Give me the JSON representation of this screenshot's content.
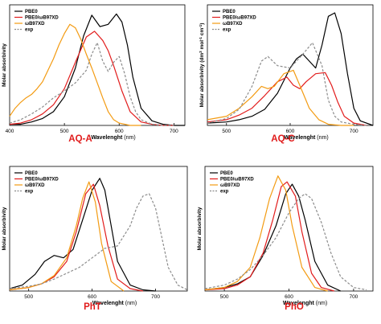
{
  "figure": {
    "panel_count": 4
  },
  "colors": {
    "PBE0": "#000000",
    "PBE0/wB97XD": "#e21c1c",
    "wB97XD": "#f39b12",
    "exp": "#8c8c8c",
    "panel_label": "#e01b1b"
  },
  "chart_data": [
    {
      "id": "AQ-A",
      "type": "line",
      "label": "AQ-A",
      "xlabel": "Wavelenght",
      "xunit": " (nm)",
      "ylabel": "Molar absorbivity",
      "ylabel_sup": "",
      "xlim": [
        400,
        720
      ],
      "ylim": [
        0,
        1.05
      ],
      "xticks": [
        400,
        500,
        600,
        700
      ],
      "grid": false,
      "legend": "top-left",
      "series": [
        {
          "name": "PBE0",
          "key": "PBE0",
          "dash": false,
          "x": [
            400,
            420,
            440,
            460,
            480,
            500,
            520,
            535,
            550,
            565,
            580,
            595,
            605,
            615,
            625,
            640,
            660,
            680,
            700,
            720
          ],
          "y": [
            0.01,
            0.01,
            0.03,
            0.06,
            0.12,
            0.25,
            0.5,
            0.78,
            0.96,
            0.86,
            0.88,
            0.97,
            0.9,
            0.7,
            0.42,
            0.15,
            0.04,
            0.01,
            0,
            0
          ]
        },
        {
          "name": "PBE0/ωB97XD",
          "key": "PBE0/wB97XD",
          "dash": false,
          "x": [
            400,
            420,
            440,
            460,
            480,
            500,
            520,
            540,
            555,
            570,
            580,
            590,
            605,
            620,
            640,
            660,
            680,
            700
          ],
          "y": [
            0.01,
            0.02,
            0.05,
            0.1,
            0.18,
            0.32,
            0.55,
            0.77,
            0.82,
            0.74,
            0.65,
            0.52,
            0.3,
            0.12,
            0.03,
            0.01,
            0,
            0
          ]
        },
        {
          "name": "ωB97XD",
          "key": "wB97XD",
          "dash": false,
          "x": [
            400,
            410,
            420,
            430,
            440,
            450,
            460,
            470,
            480,
            490,
            500,
            510,
            520,
            530,
            540,
            550,
            560,
            570,
            580,
            590,
            600,
            620,
            640
          ],
          "y": [
            0.08,
            0.15,
            0.2,
            0.24,
            0.27,
            0.32,
            0.38,
            0.48,
            0.58,
            0.7,
            0.8,
            0.88,
            0.85,
            0.75,
            0.62,
            0.5,
            0.37,
            0.24,
            0.12,
            0.05,
            0.02,
            0,
            0
          ]
        },
        {
          "name": "exp",
          "key": "exp",
          "dash": true,
          "x": [
            400,
            420,
            440,
            460,
            480,
            500,
            520,
            540,
            550,
            560,
            570,
            580,
            590,
            600,
            610,
            620,
            630,
            640,
            660,
            680,
            700
          ],
          "y": [
            0.02,
            0.05,
            0.1,
            0.16,
            0.24,
            0.3,
            0.37,
            0.48,
            0.62,
            0.72,
            0.56,
            0.47,
            0.55,
            0.6,
            0.45,
            0.25,
            0.12,
            0.05,
            0.01,
            0,
            0
          ]
        }
      ]
    },
    {
      "id": "AQ-C",
      "type": "line",
      "label": "AQ-C",
      "xlabel": "Wavelenght",
      "xunit": " (nm)",
      "ylabel": "Molar absorbivity (dm",
      "ylabel_sup": "3",
      "ylabel_tail": " mol",
      "ylabel_sup2": "-1",
      "ylabel_tail2": " cm",
      "ylabel_sup3": "-1",
      "ylabel_tail3": ")",
      "xlim": [
        470,
        730
      ],
      "ylim": [
        0,
        1.05
      ],
      "xticks": [
        500,
        600,
        700
      ],
      "grid": false,
      "legend": "top-left",
      "series": [
        {
          "name": "PBE0",
          "key": "PBE0",
          "dash": false,
          "x": [
            470,
            500,
            520,
            540,
            560,
            580,
            600,
            610,
            620,
            630,
            640,
            650,
            660,
            670,
            680,
            690,
            700,
            710,
            730
          ],
          "y": [
            0.02,
            0.03,
            0.05,
            0.08,
            0.14,
            0.28,
            0.5,
            0.58,
            0.62,
            0.56,
            0.5,
            0.7,
            0.95,
            0.98,
            0.8,
            0.45,
            0.15,
            0.04,
            0
          ]
        },
        {
          "name": "PBE0/ωB97XD",
          "key": "PBE0/wB97XD",
          "dash": false,
          "x": [
            470,
            500,
            520,
            540,
            560,
            580,
            595,
            605,
            615,
            625,
            640,
            655,
            665,
            675,
            685,
            700,
            720
          ],
          "y": [
            0.03,
            0.05,
            0.09,
            0.15,
            0.26,
            0.38,
            0.42,
            0.35,
            0.32,
            0.38,
            0.45,
            0.46,
            0.35,
            0.2,
            0.08,
            0.02,
            0
          ]
        },
        {
          "name": "ωB97XD",
          "key": "wB97XD",
          "dash": false,
          "x": [
            470,
            500,
            520,
            540,
            555,
            565,
            575,
            590,
            605,
            615,
            630,
            645,
            660,
            680,
            700
          ],
          "y": [
            0.05,
            0.08,
            0.15,
            0.25,
            0.34,
            0.32,
            0.34,
            0.45,
            0.48,
            0.35,
            0.15,
            0.05,
            0.01,
            0,
            0
          ]
        },
        {
          "name": "exp",
          "key": "exp",
          "dash": true,
          "x": [
            470,
            500,
            520,
            540,
            555,
            565,
            580,
            600,
            620,
            635,
            650,
            660,
            670,
            680,
            700,
            720
          ],
          "y": [
            0.02,
            0.06,
            0.14,
            0.34,
            0.56,
            0.6,
            0.52,
            0.5,
            0.62,
            0.72,
            0.52,
            0.22,
            0.08,
            0.03,
            0.01,
            0
          ]
        }
      ]
    },
    {
      "id": "PhT",
      "type": "line",
      "label": "PhT",
      "xlabel": "Wavelenght",
      "xunit": " (nm)",
      "ylabel": "Molar absorbivity",
      "ylabel_sup": "",
      "xlim": [
        470,
        750
      ],
      "ylim": [
        0,
        1.05
      ],
      "xticks": [
        500,
        600,
        700
      ],
      "grid": false,
      "legend": "top-left",
      "series": [
        {
          "name": "PBE0",
          "key": "PBE0",
          "dash": false,
          "x": [
            470,
            490,
            510,
            525,
            540,
            555,
            570,
            585,
            600,
            612,
            620,
            630,
            640,
            660,
            680,
            700
          ],
          "y": [
            0.02,
            0.05,
            0.14,
            0.25,
            0.3,
            0.28,
            0.35,
            0.6,
            0.85,
            0.95,
            0.85,
            0.55,
            0.25,
            0.05,
            0.01,
            0
          ]
        },
        {
          "name": "PBE0/ωB97XD",
          "key": "PBE0/wB97XD",
          "dash": false,
          "x": [
            470,
            500,
            520,
            540,
            560,
            575,
            590,
            602,
            612,
            625,
            640,
            660,
            680
          ],
          "y": [
            0.01,
            0.03,
            0.06,
            0.12,
            0.25,
            0.5,
            0.82,
            0.9,
            0.72,
            0.38,
            0.1,
            0.02,
            0
          ]
        },
        {
          "name": "ωB97XD",
          "key": "wB97XD",
          "dash": false,
          "x": [
            470,
            500,
            520,
            540,
            560,
            575,
            585,
            595,
            605,
            615,
            630,
            650
          ],
          "y": [
            0.01,
            0.03,
            0.06,
            0.13,
            0.28,
            0.55,
            0.78,
            0.92,
            0.75,
            0.4,
            0.08,
            0
          ]
        },
        {
          "name": "exp",
          "key": "exp",
          "dash": true,
          "x": [
            470,
            500,
            520,
            540,
            560,
            580,
            600,
            620,
            640,
            660,
            670,
            680,
            690,
            700,
            710,
            720,
            735,
            750
          ],
          "y": [
            0.02,
            0.04,
            0.06,
            0.1,
            0.15,
            0.2,
            0.28,
            0.36,
            0.38,
            0.55,
            0.7,
            0.8,
            0.82,
            0.7,
            0.45,
            0.2,
            0.05,
            0.01
          ]
        }
      ]
    },
    {
      "id": "PhO",
      "type": "line",
      "label": "PhO",
      "xlabel": "Wavelenght",
      "xunit": " (nm)",
      "ylabel": "Molar absorbivity",
      "ylabel_sup": "",
      "xlim": [
        470,
        730
      ],
      "ylim": [
        0,
        1.05
      ],
      "xticks": [
        500,
        600,
        700
      ],
      "grid": false,
      "legend": "top-left",
      "series": [
        {
          "name": "PBE0",
          "key": "PBE0",
          "dash": false,
          "x": [
            470,
            500,
            520,
            540,
            560,
            580,
            595,
            605,
            615,
            625,
            640,
            660,
            680
          ],
          "y": [
            0.01,
            0.03,
            0.06,
            0.12,
            0.3,
            0.55,
            0.82,
            0.9,
            0.8,
            0.6,
            0.25,
            0.05,
            0
          ]
        },
        {
          "name": "PBE0/ωB97XD",
          "key": "PBE0/wB97XD",
          "dash": false,
          "x": [
            470,
            500,
            520,
            540,
            560,
            575,
            588,
            597,
            610,
            620,
            635,
            650,
            670
          ],
          "y": [
            0.01,
            0.02,
            0.05,
            0.12,
            0.32,
            0.6,
            0.88,
            0.92,
            0.8,
            0.5,
            0.15,
            0.03,
            0
          ]
        },
        {
          "name": "ωB97XD",
          "key": "wB97XD",
          "dash": false,
          "x": [
            470,
            500,
            520,
            540,
            555,
            570,
            583,
            595,
            605,
            620,
            640,
            660
          ],
          "y": [
            0.01,
            0.03,
            0.08,
            0.2,
            0.45,
            0.78,
            0.97,
            0.85,
            0.55,
            0.2,
            0.03,
            0
          ]
        },
        {
          "name": "exp",
          "key": "exp",
          "dash": true,
          "x": [
            470,
            500,
            520,
            540,
            560,
            580,
            600,
            615,
            625,
            635,
            650,
            665,
            680,
            700,
            720
          ],
          "y": [
            0.02,
            0.05,
            0.1,
            0.18,
            0.3,
            0.45,
            0.66,
            0.78,
            0.82,
            0.78,
            0.58,
            0.32,
            0.12,
            0.03,
            0.01
          ]
        }
      ]
    }
  ]
}
